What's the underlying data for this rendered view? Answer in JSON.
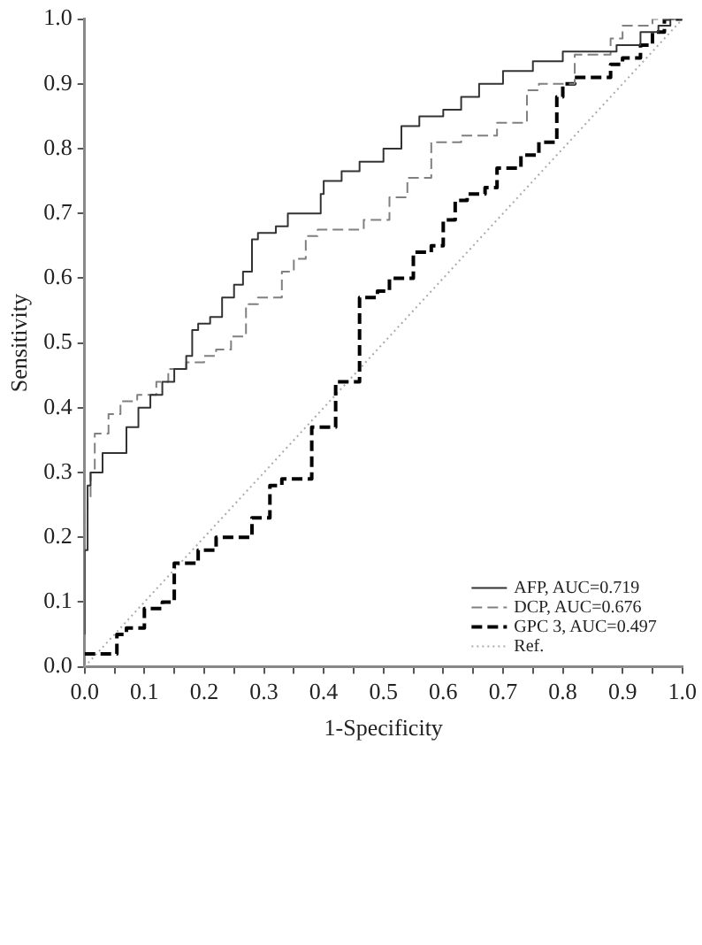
{
  "chart_data": {
    "type": "step",
    "xlabel": "1-Specificity",
    "ylabel": "Sensitivity",
    "xlim": [
      0,
      1
    ],
    "ylim": [
      0,
      1
    ],
    "xticks": [
      {
        "value": 0,
        "label": "0.0"
      },
      {
        "value": 0.05,
        "label": null
      },
      {
        "value": 0.1,
        "label": "0.1"
      },
      {
        "value": 0.15,
        "label": null
      },
      {
        "value": 0.2,
        "label": "0.2"
      },
      {
        "value": 0.25,
        "label": null
      },
      {
        "value": 0.3,
        "label": "0.3"
      },
      {
        "value": 0.35,
        "label": null
      },
      {
        "value": 0.4,
        "label": "0.4"
      },
      {
        "value": 0.45,
        "label": null
      },
      {
        "value": 0.5,
        "label": "0.5"
      },
      {
        "value": 0.55,
        "label": null
      },
      {
        "value": 0.6,
        "label": "0.6"
      },
      {
        "value": 0.65,
        "label": null
      },
      {
        "value": 0.7,
        "label": "0.7"
      },
      {
        "value": 0.75,
        "label": null
      },
      {
        "value": 0.8,
        "label": "0.8"
      },
      {
        "value": 0.85,
        "label": null
      },
      {
        "value": 0.9,
        "label": "0.9"
      },
      {
        "value": 0.95,
        "label": null
      },
      {
        "value": 1,
        "label": "1.0"
      }
    ],
    "yticks": [
      {
        "value": 0,
        "label": "0.0"
      },
      0.1,
      0.2,
      0.3,
      0.4,
      0.5,
      0.6,
      0.7,
      0.8,
      0.9,
      {
        "value": 1,
        "label": "1.0"
      }
    ],
    "grid": false,
    "legend": "bottom right",
    "series": [
      {
        "name": "AFP, AUC=0.719",
        "color": "#333333",
        "line_style": "solid",
        "x": [
          0,
          0.005,
          0.01,
          0.03,
          0.07,
          0.09,
          0.11,
          0.13,
          0.15,
          0.17,
          0.18,
          0.19,
          0.21,
          0.23,
          0.25,
          0.265,
          0.28,
          0.29,
          0.32,
          0.34,
          0.395,
          0.4,
          0.43,
          0.46,
          0.5,
          0.53,
          0.56,
          0.6,
          0.63,
          0.66,
          0.7,
          0.75,
          0.8,
          0.89,
          0.93,
          0.96,
          0.98,
          1
        ],
        "values": [
          0.05,
          0.18,
          0.28,
          0.3,
          0.33,
          0.37,
          0.4,
          0.42,
          0.44,
          0.46,
          0.48,
          0.52,
          0.53,
          0.54,
          0.57,
          0.59,
          0.61,
          0.66,
          0.67,
          0.68,
          0.7,
          0.73,
          0.75,
          0.765,
          0.78,
          0.8,
          0.835,
          0.85,
          0.86,
          0.88,
          0.9,
          0.92,
          0.935,
          0.95,
          0.96,
          0.98,
          0.99,
          1
        ]
      },
      {
        "name": "DCP, AUC=0.676",
        "color": "#808080",
        "line_style": "dashed",
        "x": [
          0,
          0.005,
          0.01,
          0.017,
          0.04,
          0.06,
          0.088,
          0.12,
          0.14,
          0.17,
          0.2,
          0.22,
          0.245,
          0.27,
          0.29,
          0.33,
          0.35,
          0.37,
          0.39,
          0.467,
          0.51,
          0.54,
          0.58,
          0.63,
          0.69,
          0.74,
          0.76,
          0.82,
          0.88,
          0.9,
          0.95,
          1
        ],
        "values": [
          0.05,
          0.24,
          0.26,
          0.3,
          0.36,
          0.39,
          0.41,
          0.42,
          0.44,
          0.46,
          0.47,
          0.48,
          0.49,
          0.51,
          0.56,
          0.57,
          0.61,
          0.63,
          0.665,
          0.675,
          0.69,
          0.725,
          0.755,
          0.81,
          0.82,
          0.84,
          0.89,
          0.9,
          0.945,
          0.97,
          0.99,
          1
        ]
      },
      {
        "name": "GPC 3, AUC=0.497",
        "color": "#000000",
        "line_style": "dashed",
        "x": [
          0,
          0.054,
          0.07,
          0.1,
          0.13,
          0.15,
          0.19,
          0.22,
          0.28,
          0.31,
          0.33,
          0.38,
          0.42,
          0.46,
          0.49,
          0.51,
          0.55,
          0.58,
          0.6,
          0.62,
          0.64,
          0.67,
          0.69,
          0.73,
          0.76,
          0.79,
          0.8,
          0.82,
          0.88,
          0.9,
          0.93,
          0.95,
          0.97,
          1
        ],
        "values": [
          0.02,
          0.02,
          0.05,
          0.06,
          0.09,
          0.1,
          0.16,
          0.18,
          0.2,
          0.23,
          0.28,
          0.29,
          0.37,
          0.44,
          0.57,
          0.58,
          0.6,
          0.64,
          0.65,
          0.69,
          0.72,
          0.73,
          0.74,
          0.77,
          0.79,
          0.81,
          0.88,
          0.9,
          0.91,
          0.93,
          0.94,
          0.96,
          0.98,
          1
        ]
      },
      {
        "name": "Ref.",
        "type": "line",
        "color": "#aaaaaa",
        "line_style": "dotted",
        "x": [
          0,
          1
        ],
        "values": [
          0,
          1
        ]
      }
    ]
  }
}
